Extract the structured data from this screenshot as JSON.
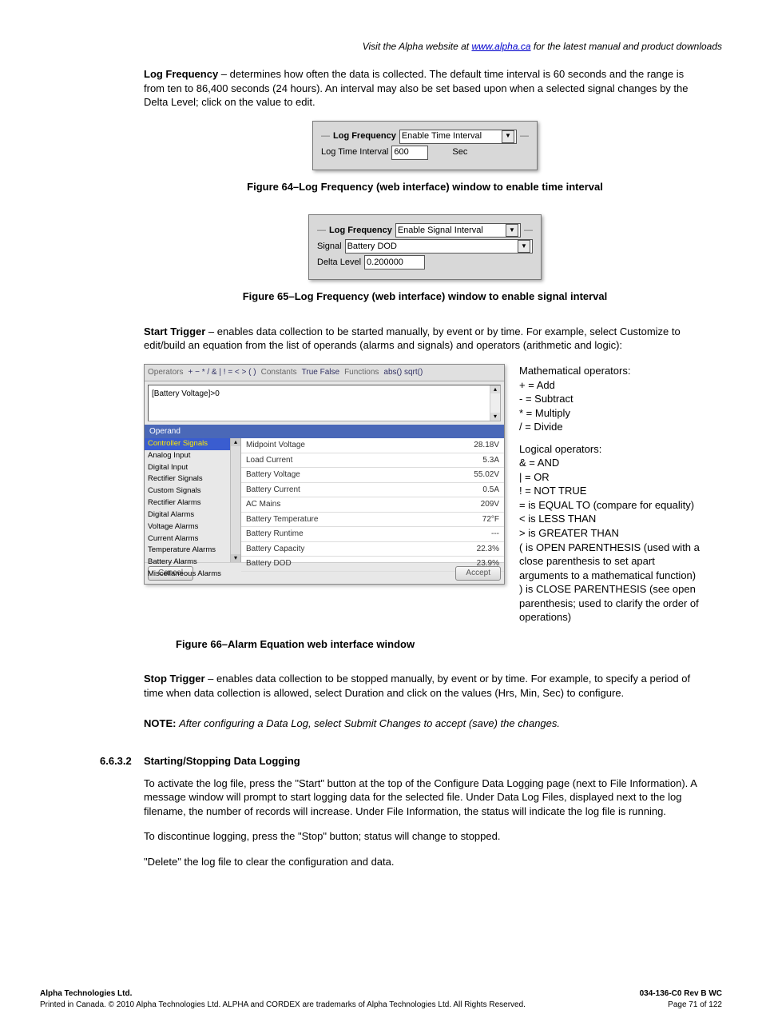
{
  "top_note_prefix": "Visit the Alpha website at ",
  "top_note_link": "www.alpha.ca",
  "top_note_suffix": " for the latest manual and product downloads",
  "log_freq_title": "Log Frequency",
  "log_freq_body": " – determines how often the data is collected. The default time interval is 60 seconds and the range is from ten to 86,400 seconds (24 hours). An interval may also be set based upon when a selected signal changes by the Delta Level; click on the value to edit.",
  "win1": {
    "l1_label": "Log Frequency",
    "l1_value": "Enable Time Interval",
    "l2_label": "Log Time Interval",
    "l2_value": "600",
    "l2_unit": "Sec"
  },
  "fig64": "Figure 64–Log Frequency (web interface) window to enable time interval",
  "win2": {
    "l1_label": "Log Frequency",
    "l1_value": "Enable Signal Interval",
    "l2_label": "Signal",
    "l2_value": "Battery DOD",
    "l3_label": "Delta Level",
    "l3_value": "0.200000"
  },
  "fig65": "Figure 65–Log Frequency (web interface) window to enable signal interval",
  "start_trigger_title": "Start Trigger",
  "start_trigger_body": " – enables data collection to be started manually, by event or by time. For example, select Customize to edit/build an equation from the list of operands (alarms and signals) and operators (arithmetic and logic):",
  "editor": {
    "toolbar_ops": "Operators",
    "toolbar_ops_list": "+   −   *   /   &   |   !   =   <   >   (   )",
    "toolbar_const": "Constants",
    "toolbar_const_v": "True False",
    "toolbar_func": "Functions",
    "toolbar_func_v": "abs() sqrt()",
    "expr": "[Battery Voltage]>0",
    "operand_hdr": "Operand",
    "side_items": [
      "Controller Signals",
      "Analog Input",
      "Digital Input",
      "Rectifier Signals",
      "Custom Signals",
      "Rectifier Alarms",
      "Digital Alarms",
      "Voltage Alarms",
      "Current Alarms",
      "Temperature Alarms",
      "Battery Alarms",
      "Miscellaneous Alarms"
    ],
    "side_selected_index": 0,
    "table": [
      [
        "Midpoint Voltage",
        "28.18V"
      ],
      [
        "Load Current",
        "5.3A"
      ],
      [
        "Battery Voltage",
        "55.02V"
      ],
      [
        "Battery Current",
        "0.5A"
      ],
      [
        "AC Mains",
        "209V"
      ],
      [
        "Battery Temperature",
        "72°F"
      ],
      [
        "Battery Runtime",
        "---"
      ],
      [
        "Battery Capacity",
        "22.3%"
      ],
      [
        "Battery DOD",
        "23.9%"
      ]
    ],
    "btn_cancel": "Cancel",
    "btn_accept": "Accept"
  },
  "math_hdr": "Mathematical operators:",
  "math_lines": [
    "+ = Add",
    "- = Subtract",
    "* = Multiply",
    "/ = Divide"
  ],
  "logic_hdr": "Logical operators:",
  "logic_lines": [
    "& = AND",
    "| = OR",
    "! = NOT TRUE",
    "= is EQUAL TO (compare for equality)",
    "< is LESS THAN",
    "> is GREATER THAN",
    "(  is OPEN PARENTHESIS (used with a close parenthesis to set apart arguments to a mathematical function)",
    ")  is CLOSE PARENTHESIS (see open parenthesis; used to clarify the order of operations)"
  ],
  "fig66": "Figure 66–Alarm Equation web interface window",
  "stop_trigger_title": "Stop Trigger",
  "stop_trigger_body": " – enables data collection to be stopped manually, by event or by time. For example, to specify a period of time when data collection is allowed, select Duration and click on the values (Hrs, Min, Sec) to configure.",
  "note_label": "NOTE:  ",
  "note_body": "After configuring a Data Log, select Submit Changes to accept (save) the changes.",
  "sect_num": "6.6.3.2",
  "sect_title": "Starting/Stopping Data Logging",
  "sect_p1": "To activate the log file, press the \"Start\" button at the top of the Configure Data Logging page (next to File Information). A message window will prompt to start logging data for the selected file. Under Data Log Files, displayed next to the log filename, the number of records will increase. Under File Information, the status will indicate the log file is running.",
  "sect_p2": "To discontinue logging, press the \"Stop\" button; status will change to stopped.",
  "sect_p3": "\"Delete\" the log file to clear the configuration and data.",
  "footer": {
    "company": "Alpha Technologies Ltd.",
    "line2": "Printed in Canada.  © 2010 Alpha Technologies Ltd.  ALPHA and CORDEX are trademarks of Alpha Technologies Ltd.  All Rights Reserved.",
    "doc": "034-136-C0  Rev B  WC",
    "page": "Page 71 of 122"
  }
}
